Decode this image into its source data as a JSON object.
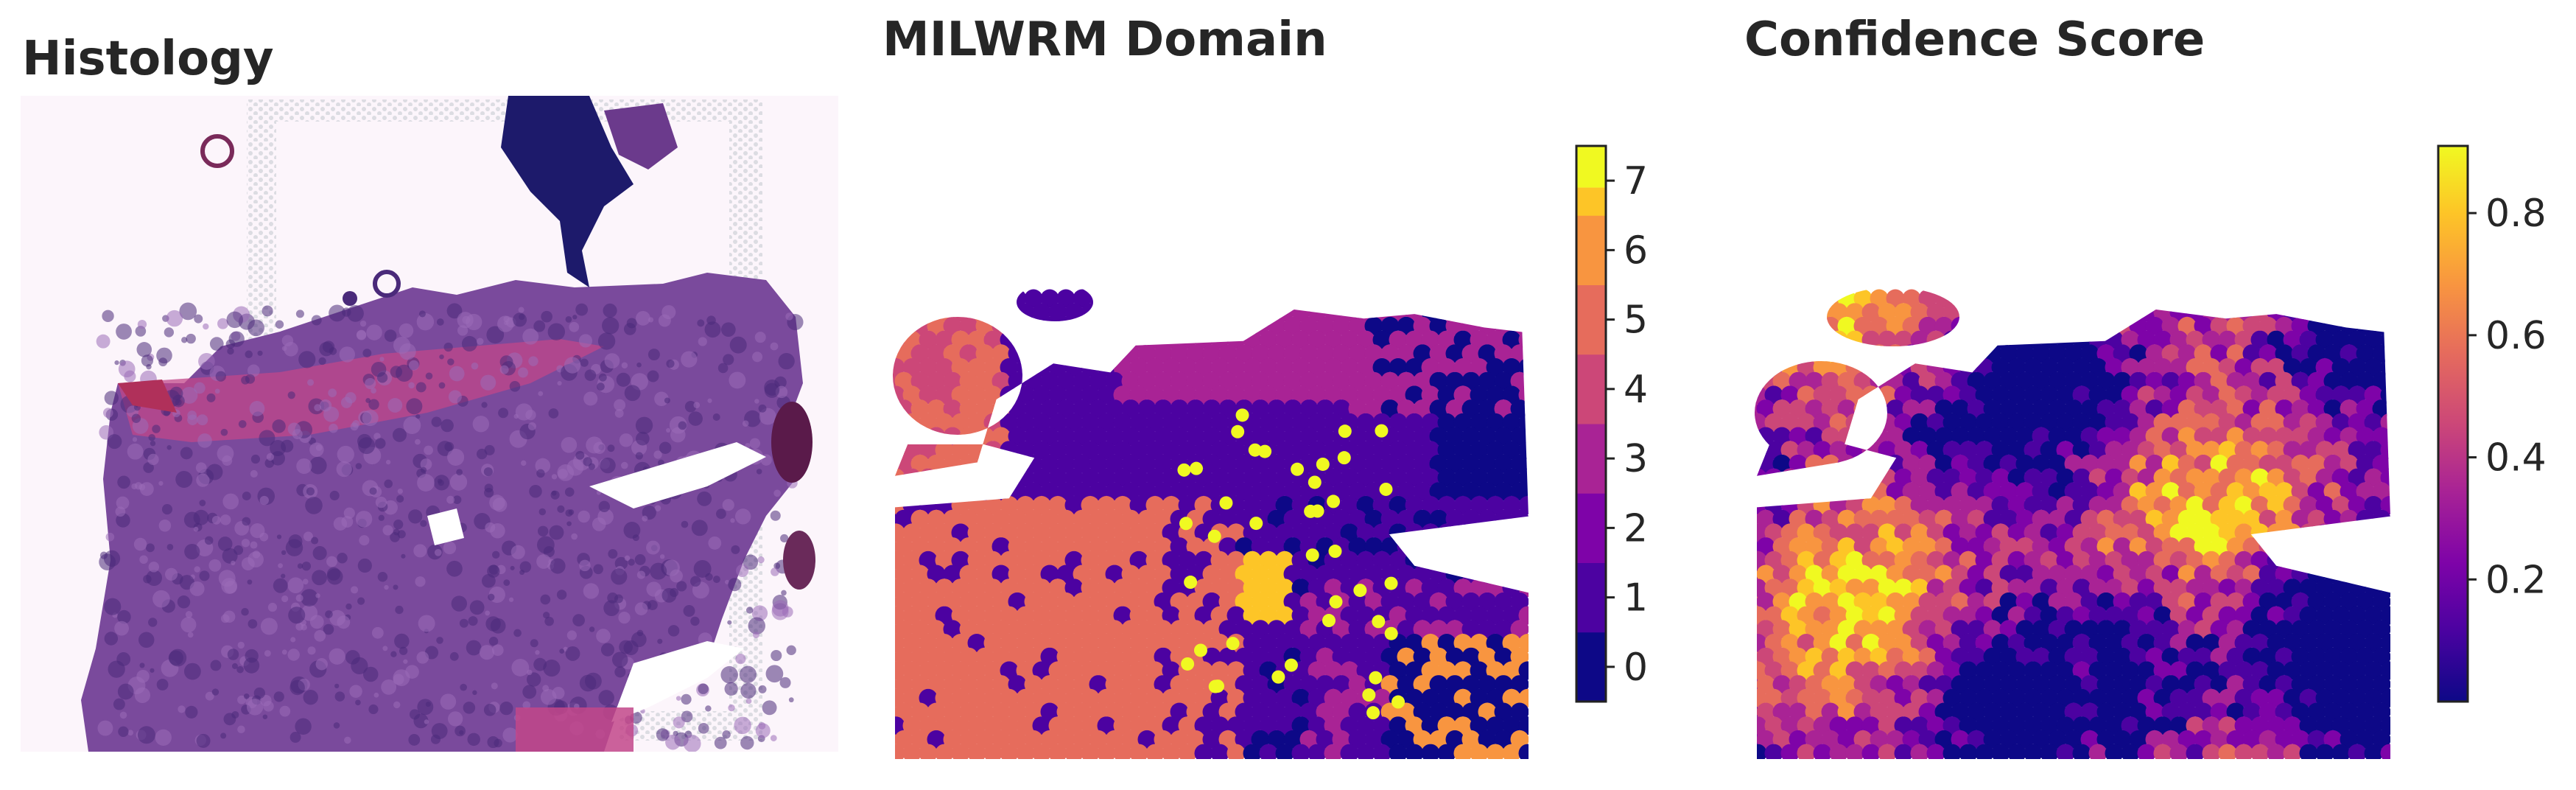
{
  "chart_data": [
    {
      "type": "image",
      "title": "Histology",
      "colors": {
        "tissue_dark": "#4a2a7a",
        "tissue_mid": "#7a4a9c",
        "tissue_pink": "#c2478a",
        "stain_navy": "#1d1a6b",
        "background": "#fbf3fa"
      }
    },
    {
      "type": "heatmap",
      "title": "MILWRM Domain",
      "colorbar": {
        "ticks": [
          0,
          1,
          2,
          3,
          4,
          5,
          6,
          7
        ],
        "range": [
          -0.5,
          7.5
        ],
        "discrete": true,
        "colors": [
          "#0d0887",
          "#4c02a1",
          "#7e03a8",
          "#a92395",
          "#cc4778",
          "#e66c5c",
          "#f89540",
          "#fdc527",
          "#f0f921"
        ]
      },
      "legend": "right"
    },
    {
      "type": "heatmap",
      "title": "Confidence Score",
      "colorbar": {
        "ticks": [
          0.2,
          0.4,
          0.6,
          0.8
        ],
        "range": [
          0.0,
          0.91
        ],
        "colormap": "plasma"
      },
      "legend": "right"
    }
  ]
}
